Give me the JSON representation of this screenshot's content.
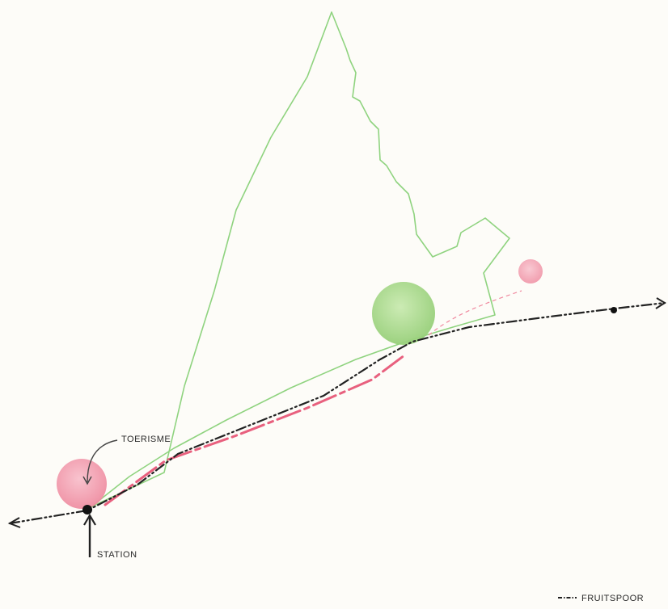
{
  "labels": {
    "tourism": "TOERISME",
    "station": "STATION",
    "legend_fruit_line": "FRUITSPOOR"
  },
  "colors": {
    "paper": "#fdfcf8",
    "boundary_green": "#8fd37f",
    "green_node": "#a8d98c",
    "pink_node": "#f08aa0",
    "pink_route": "#e8607e",
    "rail_dark": "#222222"
  }
}
